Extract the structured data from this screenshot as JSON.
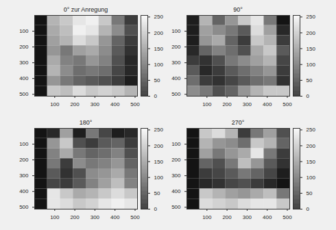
{
  "chart_data": [
    {
      "type": "heatmap",
      "title": "0° zur Anregung",
      "x": [
        32,
        96,
        160,
        224,
        288,
        352,
        416,
        480
      ],
      "y": [
        32,
        96,
        160,
        224,
        288,
        352,
        416,
        480
      ],
      "cells": [
        [
          20,
          180,
          200,
          230,
          240,
          200,
          120,
          60
        ],
        [
          20,
          170,
          190,
          240,
          230,
          180,
          140,
          80
        ],
        [
          20,
          160,
          180,
          220,
          200,
          150,
          100,
          60
        ],
        [
          20,
          150,
          120,
          160,
          170,
          140,
          90,
          50
        ],
        [
          20,
          170,
          130,
          120,
          150,
          130,
          80,
          40
        ],
        [
          20,
          180,
          140,
          110,
          120,
          110,
          70,
          40
        ],
        [
          20,
          150,
          120,
          100,
          90,
          80,
          60,
          30
        ],
        [
          20,
          200,
          190,
          220,
          200,
          210,
          200,
          180
        ]
      ],
      "xlim": [
        0,
        512
      ],
      "ylim": [
        512,
        0
      ],
      "xticks": [
        100,
        200,
        300,
        400,
        500
      ],
      "yticks": [
        100,
        200,
        300,
        400,
        500
      ],
      "color_range": [
        0,
        255
      ],
      "color_ticks": [
        0,
        50,
        100,
        150,
        200,
        250
      ]
    },
    {
      "type": "heatmap",
      "title": "90°",
      "x": [
        32,
        96,
        160,
        224,
        288,
        352,
        416,
        480
      ],
      "y": [
        32,
        96,
        160,
        224,
        288,
        352,
        416,
        480
      ],
      "cells": [
        [
          30,
          180,
          100,
          150,
          200,
          230,
          120,
          20
        ],
        [
          30,
          160,
          140,
          120,
          90,
          220,
          160,
          40
        ],
        [
          30,
          150,
          170,
          100,
          60,
          200,
          180,
          60
        ],
        [
          40,
          100,
          130,
          110,
          80,
          170,
          200,
          90
        ],
        [
          60,
          50,
          80,
          120,
          140,
          160,
          180,
          70
        ],
        [
          90,
          40,
          60,
          90,
          110,
          130,
          150,
          60
        ],
        [
          110,
          60,
          50,
          70,
          90,
          110,
          120,
          50
        ],
        [
          140,
          120,
          80,
          100,
          150,
          180,
          200,
          200
        ]
      ],
      "xlim": [
        0,
        512
      ],
      "ylim": [
        512,
        0
      ],
      "xticks": [
        100,
        200,
        300,
        400,
        500
      ],
      "yticks": [
        100,
        200,
        300,
        400,
        500
      ],
      "color_range": [
        0,
        255
      ],
      "color_ticks": [
        0,
        50,
        100,
        150,
        200,
        250
      ]
    },
    {
      "type": "heatmap",
      "title": "180°",
      "x": [
        32,
        96,
        160,
        224,
        288,
        352,
        416,
        480
      ],
      "y": [
        32,
        96,
        160,
        224,
        288,
        352,
        416,
        480
      ],
      "cells": [
        [
          20,
          40,
          160,
          30,
          120,
          70,
          30,
          40
        ],
        [
          20,
          150,
          200,
          80,
          60,
          90,
          100,
          60
        ],
        [
          20,
          130,
          170,
          120,
          100,
          110,
          130,
          80
        ],
        [
          20,
          120,
          60,
          140,
          120,
          130,
          150,
          100
        ],
        [
          20,
          90,
          50,
          80,
          140,
          150,
          170,
          120
        ],
        [
          20,
          70,
          60,
          90,
          130,
          160,
          190,
          130
        ],
        [
          20,
          230,
          200,
          170,
          180,
          200,
          220,
          200
        ],
        [
          20,
          230,
          220,
          200,
          210,
          230,
          240,
          230
        ]
      ],
      "xlim": [
        0,
        512
      ],
      "ylim": [
        512,
        0
      ],
      "xticks": [
        100,
        200,
        300,
        400,
        500
      ],
      "yticks": [
        100,
        200,
        300,
        400,
        500
      ],
      "color_range": [
        0,
        255
      ],
      "color_ticks": [
        0,
        50,
        100,
        150,
        200,
        250
      ]
    },
    {
      "type": "heatmap",
      "title": "270°",
      "x": [
        32,
        96,
        160,
        224,
        288,
        352,
        416,
        480
      ],
      "y": [
        32,
        96,
        160,
        224,
        288,
        352,
        416,
        480
      ],
      "cells": [
        [
          20,
          200,
          220,
          180,
          60,
          120,
          160,
          80
        ],
        [
          20,
          180,
          150,
          140,
          110,
          200,
          180,
          100
        ],
        [
          20,
          160,
          120,
          150,
          170,
          230,
          120,
          60
        ],
        [
          20,
          100,
          80,
          120,
          190,
          150,
          90,
          50
        ],
        [
          20,
          60,
          70,
          90,
          120,
          100,
          70,
          30
        ],
        [
          20,
          40,
          50,
          70,
          80,
          60,
          40,
          20
        ],
        [
          20,
          200,
          180,
          160,
          150,
          170,
          190,
          120
        ],
        [
          20,
          220,
          210,
          200,
          220,
          230,
          230,
          200
        ]
      ],
      "xlim": [
        0,
        512
      ],
      "ylim": [
        512,
        0
      ],
      "xticks": [
        100,
        200,
        300,
        400,
        500
      ],
      "yticks": [
        100,
        200,
        300,
        400,
        500
      ],
      "color_range": [
        0,
        255
      ],
      "color_ticks": [
        0,
        50,
        100,
        150,
        200,
        250
      ]
    }
  ]
}
